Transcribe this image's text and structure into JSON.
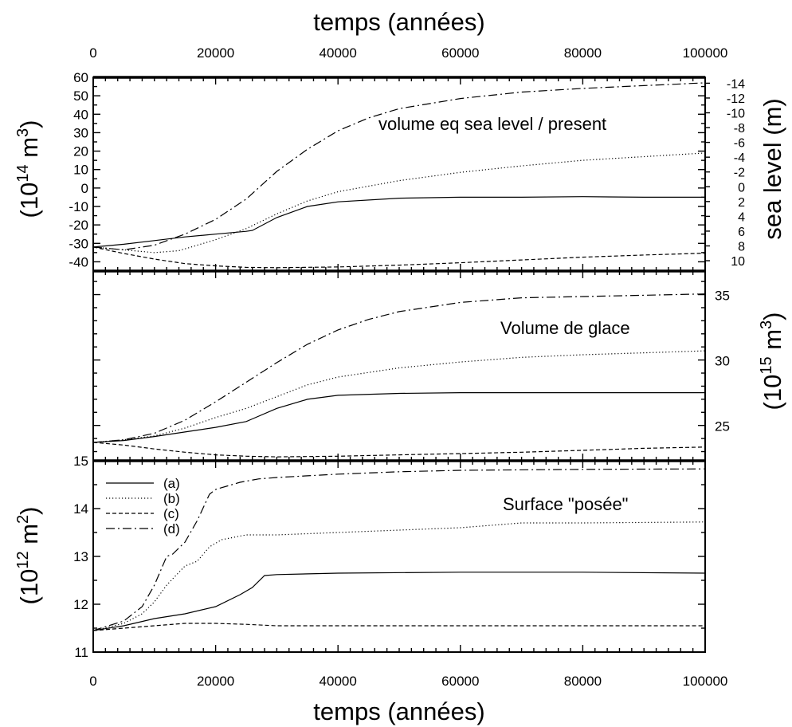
{
  "chart_data": {
    "type": "line",
    "top_axis_title": "temps (années)",
    "bottom_axis_title": "temps (années)",
    "x_ticks": [
      0,
      20000,
      40000,
      60000,
      80000,
      100000
    ],
    "xlim": [
      0,
      100000
    ],
    "line_styles": {
      "a": "solid",
      "b": "dotted",
      "c": "dashed",
      "d": "dash-dot"
    },
    "legend": {
      "placement": "top-left of bottom panel",
      "entries": [
        "(a)",
        "(b)",
        "(c)",
        "(d)"
      ]
    },
    "panels": [
      {
        "id": "volume-eq-sea-level",
        "annotation": "volume eq sea level / present",
        "ylabel_base": "(10",
        "ylabel_sup": "14",
        "ylabel_unit": " m",
        "ylabel_unit_sup": "3",
        "ylabel_close": ")",
        "ylim": [
          -45,
          60
        ],
        "y_ticks": [
          -40,
          -30,
          -20,
          -10,
          0,
          10,
          20,
          30,
          40,
          50,
          60
        ],
        "y2label": "sea level (m)",
        "y2_ticks": [
          -14,
          -12,
          -10,
          -8,
          -6,
          -4,
          -2,
          0,
          2,
          4,
          6,
          8,
          10
        ],
        "series": [
          {
            "key": "a",
            "points": [
              [
                0,
                -32
              ],
              [
                5000,
                -30.5
              ],
              [
                10000,
                -28.5
              ],
              [
                15000,
                -26.5
              ],
              [
                20000,
                -25
              ],
              [
                25000,
                -23.5
              ],
              [
                26000,
                -23
              ],
              [
                30000,
                -16
              ],
              [
                35000,
                -10
              ],
              [
                40000,
                -7.5
              ],
              [
                50000,
                -5.5
              ],
              [
                60000,
                -5
              ],
              [
                70000,
                -5
              ],
              [
                80000,
                -4.7
              ],
              [
                90000,
                -5
              ],
              [
                100000,
                -5
              ]
            ]
          },
          {
            "key": "b",
            "points": [
              [
                0,
                -32
              ],
              [
                5000,
                -33.5
              ],
              [
                10000,
                -35
              ],
              [
                14000,
                -34
              ],
              [
                20000,
                -28
              ],
              [
                25000,
                -22
              ],
              [
                30000,
                -14
              ],
              [
                35000,
                -7
              ],
              [
                40000,
                -2
              ],
              [
                50000,
                4
              ],
              [
                60000,
                8.5
              ],
              [
                70000,
                12
              ],
              [
                80000,
                15
              ],
              [
                90000,
                17
              ],
              [
                100000,
                19
              ]
            ]
          },
          {
            "key": "c",
            "points": [
              [
                0,
                -32
              ],
              [
                5000,
                -35.5
              ],
              [
                10000,
                -38.5
              ],
              [
                15000,
                -41
              ],
              [
                20000,
                -42.2
              ],
              [
                25000,
                -43
              ],
              [
                30000,
                -43.2
              ],
              [
                40000,
                -42.8
              ],
              [
                50000,
                -41.8
              ],
              [
                60000,
                -40.5
              ],
              [
                70000,
                -39
              ],
              [
                80000,
                -37.5
              ],
              [
                90000,
                -36.3
              ],
              [
                100000,
                -35.3
              ]
            ]
          },
          {
            "key": "d",
            "points": [
              [
                0,
                -32
              ],
              [
                5000,
                -33.5
              ],
              [
                10000,
                -31
              ],
              [
                15000,
                -25
              ],
              [
                20000,
                -17
              ],
              [
                25000,
                -6
              ],
              [
                30000,
                9
              ],
              [
                35000,
                21
              ],
              [
                40000,
                31
              ],
              [
                45000,
                38
              ],
              [
                50000,
                43
              ],
              [
                60000,
                48.5
              ],
              [
                70000,
                52
              ],
              [
                80000,
                54
              ],
              [
                90000,
                55.5
              ],
              [
                100000,
                57
              ]
            ]
          }
        ]
      },
      {
        "id": "volume-de-glace",
        "annotation": "Volume de glace",
        "y2label_base": "(10",
        "y2label_sup": "15",
        "y2label_unit": " m",
        "y2label_unit_sup": "3",
        "y2label_close": ")",
        "ylim": [
          22.3,
          36.8
        ],
        "y2_ticks": [
          25,
          30,
          35
        ],
        "series": [
          {
            "key": "a",
            "points": [
              [
                0,
                23.7
              ],
              [
                5000,
                23.85
              ],
              [
                10000,
                24.15
              ],
              [
                15000,
                24.5
              ],
              [
                20000,
                24.85
              ],
              [
                25000,
                25.3
              ],
              [
                26000,
                25.5
              ],
              [
                30000,
                26.3
              ],
              [
                35000,
                27
              ],
              [
                40000,
                27.3
              ],
              [
                50000,
                27.45
              ],
              [
                60000,
                27.5
              ],
              [
                70000,
                27.5
              ],
              [
                80000,
                27.5
              ],
              [
                90000,
                27.5
              ],
              [
                100000,
                27.5
              ]
            ]
          },
          {
            "key": "b",
            "points": [
              [
                0,
                23.7
              ],
              [
                5000,
                23.9
              ],
              [
                10000,
                24.2
              ],
              [
                15000,
                24.8
              ],
              [
                20000,
                25.6
              ],
              [
                25000,
                26.3
              ],
              [
                30000,
                27.2
              ],
              [
                35000,
                28.1
              ],
              [
                40000,
                28.7
              ],
              [
                50000,
                29.4
              ],
              [
                60000,
                29.85
              ],
              [
                70000,
                30.2
              ],
              [
                80000,
                30.4
              ],
              [
                90000,
                30.55
              ],
              [
                100000,
                30.7
              ]
            ]
          },
          {
            "key": "c",
            "points": [
              [
                0,
                23.7
              ],
              [
                5000,
                23.5
              ],
              [
                10000,
                23.2
              ],
              [
                15000,
                22.95
              ],
              [
                20000,
                22.75
              ],
              [
                25000,
                22.65
              ],
              [
                30000,
                22.6
              ],
              [
                40000,
                22.65
              ],
              [
                50000,
                22.75
              ],
              [
                60000,
                22.85
              ],
              [
                70000,
                22.95
              ],
              [
                80000,
                23.1
              ],
              [
                90000,
                23.25
              ],
              [
                100000,
                23.35
              ]
            ]
          },
          {
            "key": "d",
            "points": [
              [
                0,
                23.7
              ],
              [
                5000,
                23.9
              ],
              [
                10000,
                24.4
              ],
              [
                15000,
                25.4
              ],
              [
                20000,
                26.8
              ],
              [
                25000,
                28.3
              ],
              [
                30000,
                29.8
              ],
              [
                35000,
                31.2
              ],
              [
                40000,
                32.3
              ],
              [
                45000,
                33.1
              ],
              [
                50000,
                33.7
              ],
              [
                60000,
                34.4
              ],
              [
                70000,
                34.75
              ],
              [
                80000,
                34.85
              ],
              [
                90000,
                34.95
              ],
              [
                100000,
                35.05
              ]
            ]
          }
        ]
      },
      {
        "id": "surface-posee",
        "annotation": "Surface \"posée\"",
        "ylabel_base": "(10",
        "ylabel_sup": "12",
        "ylabel_unit": " m",
        "ylabel_unit_sup": "2",
        "ylabel_close": ")",
        "ylim": [
          11,
          15
        ],
        "y_ticks": [
          11,
          12,
          13,
          14,
          15
        ],
        "series": [
          {
            "key": "a",
            "points": [
              [
                0,
                11.45
              ],
              [
                5000,
                11.55
              ],
              [
                10000,
                11.7
              ],
              [
                15000,
                11.8
              ],
              [
                20000,
                11.95
              ],
              [
                24000,
                12.2
              ],
              [
                26000,
                12.35
              ],
              [
                28000,
                12.6
              ],
              [
                30000,
                12.62
              ],
              [
                40000,
                12.65
              ],
              [
                60000,
                12.67
              ],
              [
                80000,
                12.67
              ],
              [
                100000,
                12.65
              ]
            ]
          },
          {
            "key": "b",
            "points": [
              [
                0,
                11.45
              ],
              [
                5000,
                11.6
              ],
              [
                8000,
                11.8
              ],
              [
                10000,
                12.05
              ],
              [
                12000,
                12.4
              ],
              [
                15000,
                12.8
              ],
              [
                17000,
                12.9
              ],
              [
                19000,
                13.2
              ],
              [
                21000,
                13.35
              ],
              [
                25000,
                13.45
              ],
              [
                30000,
                13.45
              ],
              [
                40000,
                13.5
              ],
              [
                60000,
                13.6
              ],
              [
                70000,
                13.7
              ],
              [
                80000,
                13.7
              ],
              [
                100000,
                13.72
              ]
            ]
          },
          {
            "key": "c",
            "points": [
              [
                0,
                11.45
              ],
              [
                5000,
                11.5
              ],
              [
                10000,
                11.55
              ],
              [
                15000,
                11.6
              ],
              [
                20000,
                11.6
              ],
              [
                25000,
                11.58
              ],
              [
                30000,
                11.55
              ],
              [
                40000,
                11.55
              ],
              [
                60000,
                11.55
              ],
              [
                80000,
                11.55
              ],
              [
                100000,
                11.55
              ]
            ]
          },
          {
            "key": "d",
            "points": [
              [
                0,
                11.45
              ],
              [
                5000,
                11.65
              ],
              [
                8000,
                11.95
              ],
              [
                10000,
                12.4
              ],
              [
                12000,
                13.0
              ],
              [
                13000,
                13.05
              ],
              [
                15000,
                13.3
              ],
              [
                17000,
                13.75
              ],
              [
                19000,
                14.3
              ],
              [
                20000,
                14.4
              ],
              [
                24000,
                14.55
              ],
              [
                27000,
                14.62
              ],
              [
                30000,
                14.65
              ],
              [
                40000,
                14.72
              ],
              [
                50000,
                14.77
              ],
              [
                60000,
                14.8
              ],
              [
                80000,
                14.82
              ],
              [
                100000,
                14.83
              ]
            ]
          }
        ]
      }
    ]
  }
}
